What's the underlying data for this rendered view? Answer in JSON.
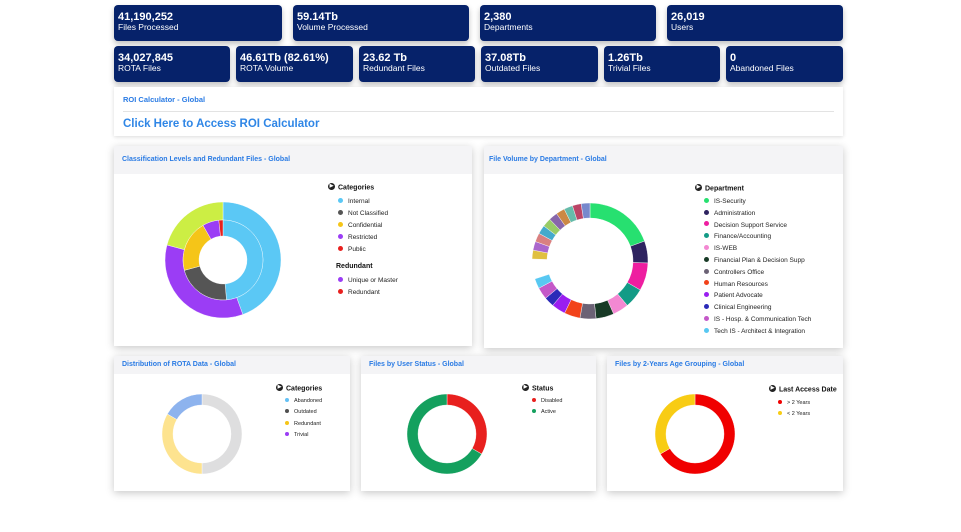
{
  "stats_row1": [
    {
      "value": "41,190,252",
      "label": "Files Processed"
    },
    {
      "value": "59.14Tb",
      "label": "Volume Processed"
    },
    {
      "value": "2,380",
      "label": "Departments"
    },
    {
      "value": "26,019",
      "label": "Users"
    }
  ],
  "stats_row2": [
    {
      "value": "34,027,845",
      "label": "ROTA Files"
    },
    {
      "value": "46.61Tb (82.61%)",
      "label": "ROTA Volume"
    },
    {
      "value": "23.62 Tb",
      "label": "Redundant Files"
    },
    {
      "value": "37.08Tb",
      "label": "Outdated Files"
    },
    {
      "value": "1.26Tb",
      "label": "Trivial Files"
    },
    {
      "value": "0",
      "label": "Abandoned Files"
    }
  ],
  "roi": {
    "title": "ROI Calculator - Global",
    "link": "Click Here to Access ROI Calculator"
  },
  "colors": {
    "tile_bg": "#06226a",
    "title_blue": "#2a7be4",
    "link_blue": "#2f86e6"
  },
  "classification_chart": {
    "title": "Classification Levels and Redundant Files - Global",
    "legend1_title": "Categories",
    "categories": [
      {
        "name": "Internal",
        "color": "#5bc8f5"
      },
      {
        "name": "Not Classified",
        "color": "#555555"
      },
      {
        "name": "Confidential",
        "color": "#f5c518"
      },
      {
        "name": "Restricted",
        "color": "#9b3df5"
      },
      {
        "name": "Public",
        "color": "#e8201e"
      }
    ],
    "legend2_title": "Redundant",
    "redundant": [
      {
        "name": "Unique or Master",
        "color": "#9b3df5"
      },
      {
        "name": "Redundant",
        "color": "#e8201e"
      }
    ]
  },
  "department_chart": {
    "title": "File Volume by Department - Global",
    "legend_title": "Department",
    "departments": [
      {
        "name": "IS-Security",
        "color": "#27e070"
      },
      {
        "name": "Administration",
        "color": "#2e2360"
      },
      {
        "name": "Decision Support Service",
        "color": "#ee1ea0"
      },
      {
        "name": "Finance/Accounting",
        "color": "#139b86"
      },
      {
        "name": "IS-WEB",
        "color": "#f388d2"
      },
      {
        "name": "Financial Plan & Decision Supp",
        "color": "#183a26"
      },
      {
        "name": "Controllers Office",
        "color": "#6b6275"
      },
      {
        "name": "Human Resources",
        "color": "#f2421a"
      },
      {
        "name": "Patient Advocate",
        "color": "#9a1ef0"
      },
      {
        "name": "Clinical Engineering",
        "color": "#2b2ab8"
      },
      {
        "name": "IS - Hosp. & Communication Tech",
        "color": "#c458c8"
      },
      {
        "name": "Tech IS - Architect & Integration",
        "color": "#58c8f2"
      }
    ]
  },
  "rota_chart": {
    "title": "Distribution of ROTA Data - Global",
    "legend_title": "Categories",
    "categories": [
      {
        "name": "Abandoned",
        "color": "#64c1f5"
      },
      {
        "name": "Outdated",
        "color": "#505050"
      },
      {
        "name": "Redundant",
        "color": "#f5c518"
      },
      {
        "name": "Trivial",
        "color": "#9b3df5"
      }
    ]
  },
  "user_status_chart": {
    "title": "Files by User Status - Global",
    "legend_title": "Status",
    "statuses": [
      {
        "name": "Disabled",
        "color": "#e8201e"
      },
      {
        "name": "Active",
        "color": "#14a05e"
      }
    ]
  },
  "age_chart": {
    "title": "Files by 2-Years Age Grouping - Global",
    "legend_title": "Last Access Date",
    "groups": [
      {
        "name": "> 2 Years",
        "color": "#f00000"
      },
      {
        "name": "< 2 Years",
        "color": "#f8cc14"
      }
    ]
  }
}
